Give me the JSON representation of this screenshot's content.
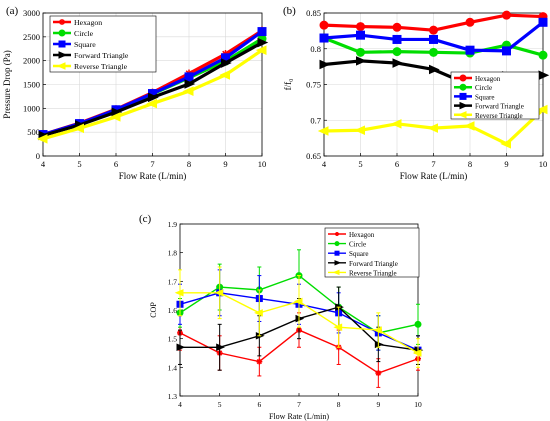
{
  "chart_data": [
    {
      "panel": "(a)",
      "type": "line",
      "xlabel": "Flow Rate (L/min)",
      "ylabel": "Pressure Drop (Pa)",
      "x": [
        4,
        5,
        6,
        7,
        8,
        9,
        10
      ],
      "xlim": [
        4,
        10
      ],
      "ylim": [
        0,
        3000
      ],
      "xticks": [
        "4",
        "5",
        "6",
        "7",
        "8",
        "9",
        "10"
      ],
      "yticks": [
        "0",
        "500",
        "1000",
        "1500",
        "2000",
        "2500",
        "3000"
      ],
      "grid": true,
      "legend": "top-left",
      "series": [
        {
          "name": "Hexagon",
          "color": "#ff0000",
          "marker": "asterisk",
          "values": [
            450,
            690,
            980,
            1330,
            1730,
            2140,
            2630
          ]
        },
        {
          "name": "Circle",
          "color": "#00dd00",
          "marker": "circle",
          "values": [
            440,
            670,
            960,
            1300,
            1640,
            1990,
            2460
          ]
        },
        {
          "name": "Square",
          "color": "#0000ff",
          "marker": "square",
          "values": [
            450,
            680,
            970,
            1310,
            1660,
            2060,
            2610
          ]
        },
        {
          "name": "Forward Triangle",
          "color": "#000000",
          "marker": "triangle-right",
          "values": [
            430,
            650,
            920,
            1230,
            1510,
            1950,
            2380
          ]
        },
        {
          "name": "Reverse Triangle",
          "color": "#ffff00",
          "marker": "triangle-left",
          "values": [
            360,
            580,
            820,
            1100,
            1360,
            1700,
            2220
          ]
        }
      ]
    },
    {
      "panel": "(b)",
      "type": "line",
      "xlabel": "Flow Rate (L/min)",
      "ylabel": "f/f₀",
      "x": [
        4,
        5,
        6,
        7,
        8,
        9,
        10
      ],
      "xlim": [
        4,
        10
      ],
      "ylim": [
        0.65,
        0.85
      ],
      "xticks": [
        "4",
        "5",
        "6",
        "7",
        "8",
        "9",
        "10"
      ],
      "yticks": [
        "0.65",
        "0.7",
        "0.75",
        "0.8",
        "0.85"
      ],
      "grid": true,
      "legend": "right",
      "series": [
        {
          "name": "Hexagon",
          "color": "#ff0000",
          "marker": "circle",
          "values": [
            0.833,
            0.831,
            0.83,
            0.826,
            0.837,
            0.847,
            0.845
          ]
        },
        {
          "name": "Circle",
          "color": "#00dd00",
          "marker": "circle",
          "values": [
            0.815,
            0.795,
            0.796,
            0.795,
            0.794,
            0.805,
            0.791
          ]
        },
        {
          "name": "Square",
          "color": "#0000ff",
          "marker": "square",
          "values": [
            0.815,
            0.819,
            0.813,
            0.813,
            0.798,
            0.797,
            0.837
          ]
        },
        {
          "name": "Forward Triangle",
          "color": "#000000",
          "marker": "triangle-right",
          "values": [
            0.778,
            0.783,
            0.78,
            0.771,
            0.749,
            0.762,
            0.763
          ]
        },
        {
          "name": "Reverse Triangle",
          "color": "#ffff00",
          "marker": "triangle-left",
          "values": [
            0.685,
            0.686,
            0.695,
            0.689,
            0.692,
            0.667,
            0.715
          ]
        }
      ]
    },
    {
      "panel": "(c)",
      "type": "line",
      "xlabel": "Flow Rate (L/min)",
      "ylabel": "COP",
      "x": [
        4,
        5,
        6,
        7,
        8,
        9,
        10
      ],
      "xlim": [
        4,
        10
      ],
      "ylim": [
        1.3,
        1.9
      ],
      "xticks": [
        "4",
        "5",
        "6",
        "7",
        "8",
        "9",
        "10"
      ],
      "yticks": [
        "1.3",
        "1.4",
        "1.5",
        "1.6",
        "1.7",
        "1.8",
        "1.9"
      ],
      "grid": false,
      "error_bars": true,
      "legend": "top-right",
      "series": [
        {
          "name": "Hexagon",
          "color": "#ff0000",
          "marker": "asterisk",
          "values": [
            1.52,
            1.45,
            1.42,
            1.53,
            1.47,
            1.38,
            1.43
          ],
          "errors": [
            0.06,
            0.06,
            0.05,
            0.06,
            0.06,
            0.05,
            0.04
          ]
        },
        {
          "name": "Circle",
          "color": "#00dd00",
          "marker": "circle",
          "values": [
            1.59,
            1.68,
            1.67,
            1.72,
            1.61,
            1.52,
            1.55
          ],
          "errors": [
            0.05,
            0.08,
            0.08,
            0.09,
            0.07,
            0.06,
            0.07
          ]
        },
        {
          "name": "Square",
          "color": "#0000ff",
          "marker": "square",
          "values": [
            1.62,
            1.66,
            1.64,
            1.62,
            1.59,
            1.52,
            1.46
          ],
          "errors": [
            0.07,
            0.08,
            0.08,
            0.07,
            0.07,
            0.06,
            0.05
          ]
        },
        {
          "name": "Forward Triangle",
          "color": "#000000",
          "marker": "triangle-right",
          "values": [
            1.47,
            1.47,
            1.51,
            1.57,
            1.61,
            1.48,
            1.46
          ],
          "errors": [
            0.06,
            0.08,
            0.07,
            0.07,
            0.07,
            0.06,
            0.05
          ]
        },
        {
          "name": "Reverse Triangle",
          "color": "#ffff00",
          "marker": "triangle-left",
          "values": [
            1.66,
            1.66,
            1.59,
            1.63,
            1.54,
            1.53,
            1.45
          ],
          "errors": [
            0.08,
            0.09,
            0.08,
            0.09,
            0.07,
            0.06,
            0.05
          ]
        }
      ]
    }
  ]
}
